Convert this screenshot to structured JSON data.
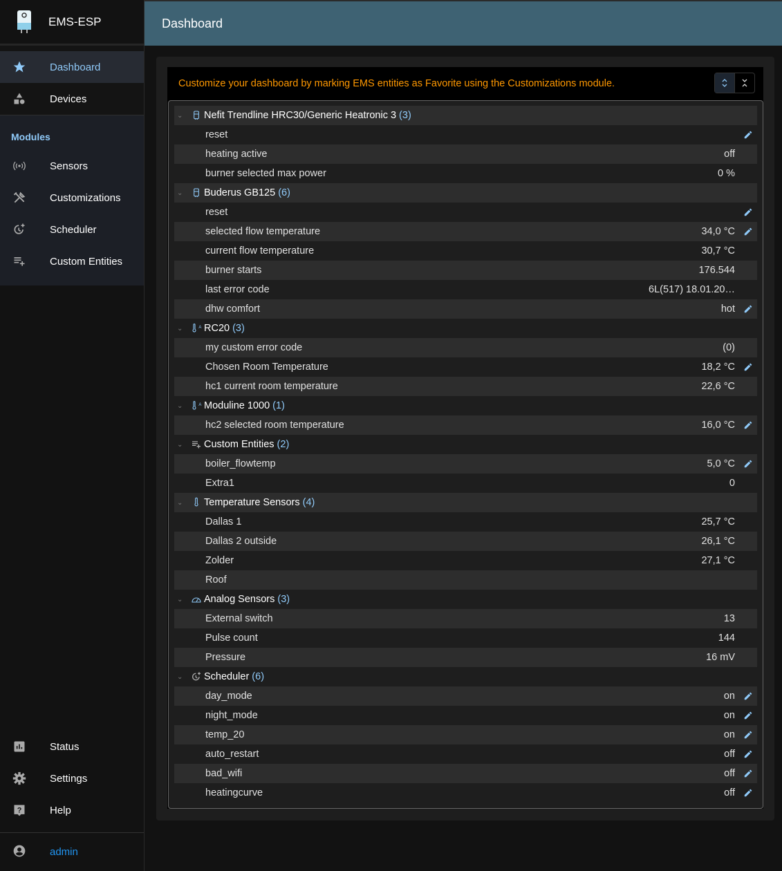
{
  "app": {
    "title": "EMS-ESP"
  },
  "header": {
    "title": "Dashboard"
  },
  "sidebar": {
    "top": [
      {
        "label": "Dashboard",
        "icon": "star-icon",
        "selected": true
      },
      {
        "label": "Devices",
        "icon": "category-icon"
      }
    ],
    "modules_label": "Modules",
    "modules": [
      {
        "label": "Sensors",
        "icon": "sensors-icon"
      },
      {
        "label": "Customizations",
        "icon": "tools-icon"
      },
      {
        "label": "Scheduler",
        "icon": "more-time-icon"
      },
      {
        "label": "Custom Entities",
        "icon": "playlist-add-icon"
      }
    ],
    "bottom": [
      {
        "label": "Status",
        "icon": "assessment-icon"
      },
      {
        "label": "Settings",
        "icon": "settings-icon"
      },
      {
        "label": "Help",
        "icon": "help-icon"
      }
    ],
    "user": "admin"
  },
  "dashboard": {
    "message": "Customize your dashboard by marking EMS entities as Favorite using the Customizations module.",
    "groups": [
      {
        "name": "Nefit Trendline HRC30/Generic Heatronic 3",
        "count": "(3)",
        "icon": "boiler-icon",
        "items": [
          {
            "label": "reset",
            "value": "",
            "editable": true
          },
          {
            "label": "heating active",
            "value": "off"
          },
          {
            "label": "burner selected max power",
            "value": "0 %"
          }
        ]
      },
      {
        "name": "Buderus GB125",
        "count": "(6)",
        "icon": "boiler-icon",
        "items": [
          {
            "label": "reset",
            "value": "",
            "editable": true
          },
          {
            "label": "selected flow temperature",
            "value": "34,0 °C",
            "editable": true
          },
          {
            "label": "current flow temperature",
            "value": "30,7 °C"
          },
          {
            "label": "burner starts",
            "value": "176.544"
          },
          {
            "label": "last error code",
            "value": "6L(517) 18.01.20…"
          },
          {
            "label": "dhw comfort",
            "value": "hot",
            "editable": true
          }
        ]
      },
      {
        "name": "RC20",
        "count": "(3)",
        "icon": "thermostat-auto-icon",
        "items": [
          {
            "label": "my custom error code",
            "value": "(0)"
          },
          {
            "label": "Chosen Room Temperature",
            "value": "18,2 °C",
            "editable": true
          },
          {
            "label": "hc1 current room temperature",
            "value": "22,6 °C"
          }
        ]
      },
      {
        "name": "Moduline 1000",
        "count": "(1)",
        "icon": "thermostat-auto-icon",
        "items": [
          {
            "label": "hc2 selected room temperature",
            "value": "16,0 °C",
            "editable": true
          }
        ]
      },
      {
        "name": "Custom Entities",
        "count": "(2)",
        "icon": "playlist-add-icon",
        "items": [
          {
            "label": "boiler_flowtemp",
            "value": "5,0 °C",
            "editable": true
          },
          {
            "label": "Extra1",
            "value": "0"
          }
        ]
      },
      {
        "name": "Temperature Sensors",
        "count": "(4)",
        "icon": "thermometer-icon",
        "items": [
          {
            "label": "Dallas 1",
            "value": "25,7 °C"
          },
          {
            "label": "Dallas 2 outside",
            "value": "26,1 °C"
          },
          {
            "label": "Zolder",
            "value": "27,1 °C"
          },
          {
            "label": "Roof",
            "value": ""
          }
        ]
      },
      {
        "name": "Analog Sensors",
        "count": "(3)",
        "icon": "gauge-icon",
        "items": [
          {
            "label": "External switch",
            "value": "13"
          },
          {
            "label": "Pulse count",
            "value": "144"
          },
          {
            "label": "Pressure",
            "value": "16 mV"
          }
        ]
      },
      {
        "name": "Scheduler",
        "count": "(6)",
        "icon": "more-time-icon",
        "items": [
          {
            "label": "day_mode",
            "value": "on",
            "editable": true
          },
          {
            "label": "night_mode",
            "value": "on",
            "editable": true
          },
          {
            "label": "temp_20",
            "value": "on",
            "editable": true
          },
          {
            "label": "auto_restart",
            "value": "off",
            "editable": true
          },
          {
            "label": "bad_wifi",
            "value": "off",
            "editable": true
          },
          {
            "label": "heatingcurve",
            "value": "off",
            "editable": true
          }
        ]
      }
    ]
  },
  "colors": {
    "accent": "#90caf9",
    "header": "#3e6273",
    "warning": "#ff9800",
    "user": "#2196f3"
  }
}
